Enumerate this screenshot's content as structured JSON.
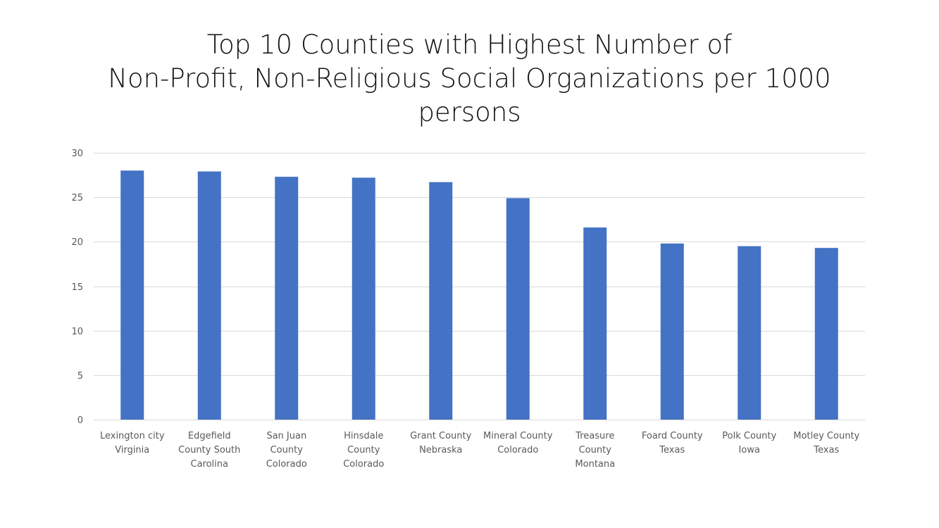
{
  "chart_data": {
    "type": "bar",
    "title_lines": [
      "Top 10 Counties with Highest Number of",
      "Non-Profit, Non-Religious Social Organizations per 1000",
      "persons"
    ],
    "xlabel": "",
    "ylabel": "",
    "ylim": [
      0,
      30
    ],
    "yticks": [
      "0",
      "5",
      "10",
      "15",
      "20",
      "25",
      "30"
    ],
    "grid": true,
    "legend": "none",
    "bar_color": "#4472C4",
    "categories": [
      "Lexington city Virginia",
      "Edgefield County South Carolina",
      "San Juan County Colorado",
      "Hinsdale County Colorado",
      "Grant County Nebraska",
      "Mineral County Colorado",
      "Treasure County Montana",
      "Foard County Texas",
      "Polk County Iowa",
      "Motley County Texas"
    ],
    "category_lines": [
      [
        "Lexington city",
        "Virginia"
      ],
      [
        "Edgefield",
        "County South",
        "Carolina"
      ],
      [
        "San Juan",
        "County",
        "Colorado"
      ],
      [
        "Hinsdale",
        "County",
        "Colorado"
      ],
      [
        "Grant County",
        "Nebraska"
      ],
      [
        "Mineral County",
        "Colorado"
      ],
      [
        "Treasure",
        "County",
        "Montana"
      ],
      [
        "Foard County",
        "Texas"
      ],
      [
        "Polk County",
        "Iowa"
      ],
      [
        "Motley County",
        "Texas"
      ]
    ],
    "values": [
      28.0,
      27.9,
      27.3,
      27.2,
      26.7,
      24.9,
      21.6,
      19.8,
      19.5,
      19.3
    ]
  }
}
